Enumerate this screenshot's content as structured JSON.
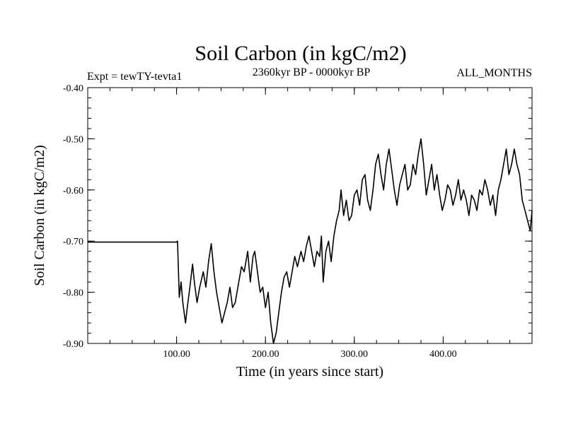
{
  "chart_data": {
    "type": "line",
    "title": "Soil Carbon (in kgC/m2)",
    "subtitle_left": "Expt = tewTY-tevta1",
    "subtitle_center": "2360kyr BP - 0000kyr BP",
    "subtitle_right": "ALL_MONTHS",
    "xlabel": "Time (in years since start)",
    "ylabel": "Soil Carbon (in kgC/m2)",
    "xlim": [
      0,
      500
    ],
    "ylim": [
      -0.9,
      -0.4
    ],
    "xticks": [
      100,
      200,
      300,
      400
    ],
    "xtick_labels": [
      "100.00",
      "200.00",
      "300.00",
      "400.00"
    ],
    "yticks": [
      -0.4,
      -0.5,
      -0.6,
      -0.7,
      -0.8,
      -0.9
    ],
    "ytick_labels": [
      "-0.40",
      "-0.50",
      "-0.60",
      "-0.70",
      "-0.80",
      "-0.90"
    ],
    "series": [
      {
        "name": "Soil Carbon",
        "x": [
          0,
          100,
          101,
          103,
          105,
          107,
          110,
          112,
          115,
          118,
          120,
          123,
          126,
          130,
          133,
          136,
          139,
          142,
          145,
          148,
          151,
          154,
          157,
          160,
          163,
          166,
          170,
          173,
          176,
          180,
          183,
          186,
          188,
          191,
          194,
          197,
          200,
          203,
          206,
          209,
          212,
          215,
          218,
          221,
          224,
          227,
          230,
          233,
          236,
          240,
          243,
          246,
          249,
          252,
          255,
          258,
          261,
          263,
          265,
          268,
          271,
          274,
          277,
          280,
          283,
          285,
          288,
          291,
          294,
          297,
          300,
          303,
          306,
          309,
          312,
          315,
          318,
          321,
          324,
          327,
          330,
          333,
          336,
          339,
          342,
          345,
          348,
          351,
          354,
          357,
          360,
          363,
          366,
          369,
          372,
          375,
          378,
          381,
          384,
          387,
          390,
          393,
          396,
          399,
          402,
          405,
          408,
          411,
          414,
          417,
          420,
          423,
          426,
          429,
          432,
          435,
          438,
          441,
          444,
          447,
          450,
          453,
          456,
          459,
          462,
          465,
          468,
          471,
          474,
          477,
          480,
          483,
          486,
          489,
          492,
          495,
          498,
          500
        ],
        "values": [
          -0.702,
          -0.702,
          -0.7,
          -0.81,
          -0.78,
          -0.82,
          -0.86,
          -0.83,
          -0.79,
          -0.745,
          -0.78,
          -0.82,
          -0.79,
          -0.76,
          -0.79,
          -0.74,
          -0.705,
          -0.76,
          -0.8,
          -0.83,
          -0.86,
          -0.84,
          -0.82,
          -0.79,
          -0.83,
          -0.82,
          -0.78,
          -0.75,
          -0.76,
          -0.72,
          -0.78,
          -0.73,
          -0.72,
          -0.76,
          -0.8,
          -0.79,
          -0.83,
          -0.8,
          -0.86,
          -0.9,
          -0.88,
          -0.84,
          -0.8,
          -0.77,
          -0.76,
          -0.79,
          -0.76,
          -0.73,
          -0.75,
          -0.72,
          -0.74,
          -0.71,
          -0.69,
          -0.72,
          -0.75,
          -0.72,
          -0.73,
          -0.69,
          -0.78,
          -0.72,
          -0.7,
          -0.74,
          -0.69,
          -0.66,
          -0.64,
          -0.6,
          -0.65,
          -0.62,
          -0.66,
          -0.65,
          -0.61,
          -0.6,
          -0.63,
          -0.58,
          -0.57,
          -0.62,
          -0.64,
          -0.6,
          -0.55,
          -0.53,
          -0.57,
          -0.6,
          -0.55,
          -0.52,
          -0.56,
          -0.6,
          -0.63,
          -0.59,
          -0.57,
          -0.55,
          -0.6,
          -0.59,
          -0.55,
          -0.57,
          -0.53,
          -0.5,
          -0.55,
          -0.61,
          -0.58,
          -0.55,
          -0.6,
          -0.57,
          -0.61,
          -0.64,
          -0.62,
          -0.59,
          -0.6,
          -0.63,
          -0.61,
          -0.58,
          -0.62,
          -0.6,
          -0.62,
          -0.65,
          -0.61,
          -0.62,
          -0.64,
          -0.6,
          -0.61,
          -0.58,
          -0.6,
          -0.63,
          -0.61,
          -0.65,
          -0.6,
          -0.58,
          -0.55,
          -0.52,
          -0.57,
          -0.55,
          -0.52,
          -0.55,
          -0.57,
          -0.62,
          -0.64,
          -0.66,
          -0.68,
          -0.64
        ]
      }
    ]
  }
}
